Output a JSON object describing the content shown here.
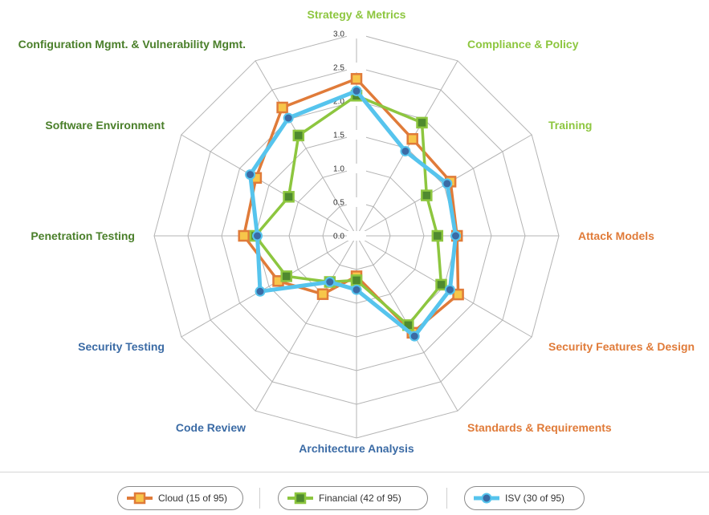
{
  "chart_data": {
    "type": "radar",
    "categories": [
      "Strategy & Metrics",
      "Compliance & Policy",
      "Training",
      "Attack Models",
      "Security Features & Design",
      "Standards & Requirements",
      "Architecture Analysis",
      "Code Review",
      "Security Testing",
      "Penetration Testing",
      "Software Environment",
      "Configuration Mgmt. & Vulnerability Mgmt."
    ],
    "category_colors": [
      "#8dc63f",
      "#8dc63f",
      "#8dc63f",
      "#e07b39",
      "#e07b39",
      "#e07b39",
      "#3b6ba5",
      "#3b6ba5",
      "#3b6ba5",
      "#4a7f2a",
      "#4a7f2a",
      "#4a7f2a"
    ],
    "ticks": [
      "0.0",
      "0.5",
      "1.0",
      "1.5",
      "2.0",
      "2.5",
      "3.0"
    ],
    "rlim": [
      0,
      3
    ],
    "series": [
      {
        "name": "Cloud (15 of 95)",
        "marker": "square",
        "color": "#e07b39",
        "fill": "#f7c64a",
        "values": [
          2.33,
          1.66,
          1.61,
          1.49,
          1.74,
          1.66,
          0.6,
          1.0,
          1.34,
          1.67,
          1.72,
          2.2
        ]
      },
      {
        "name": "Financial (42 of 95)",
        "marker": "square",
        "color": "#8dc63f",
        "fill": "#4f8a2f",
        "values": [
          2.08,
          1.94,
          1.2,
          1.2,
          1.45,
          1.53,
          0.66,
          0.79,
          1.2,
          1.5,
          1.16,
          1.72
        ]
      },
      {
        "name": "ISV (30 of 95)",
        "marker": "circle",
        "color": "#56c4ed",
        "fill": "#3b6ba5",
        "values": [
          2.15,
          1.45,
          1.55,
          1.47,
          1.6,
          1.72,
          0.8,
          0.79,
          1.65,
          1.47,
          1.82,
          2.02
        ]
      }
    ],
    "grid": true,
    "legend_position": "bottom"
  }
}
